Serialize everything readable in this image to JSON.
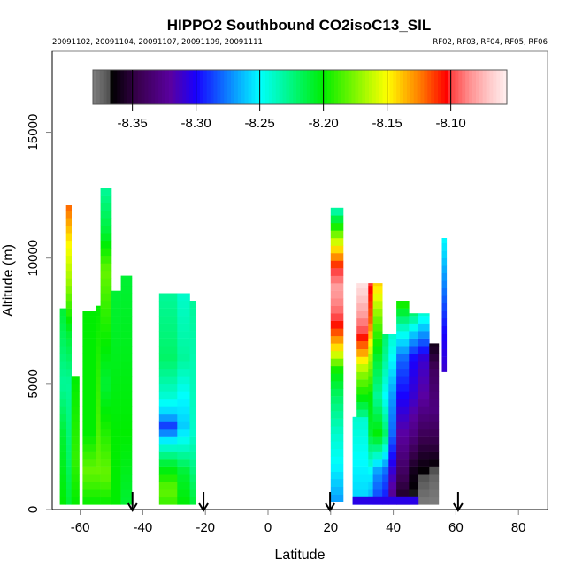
{
  "chart_data": {
    "type": "heatmap",
    "title": "HIPPO2 Southbound CO2isoC13_SIL",
    "subtitle_left": "20091102, 20091104, 20091107, 20091109, 20091111",
    "subtitle_right": "RF02, RF03, RF04, RF05, RF06",
    "xlabel": "Latitude",
    "ylabel": "Altitude (m)",
    "xlim": [
      -72,
      90
    ],
    "ylim": [
      0,
      18200
    ],
    "xticks": [
      -60,
      -40,
      -20,
      0,
      20,
      40,
      60,
      80
    ],
    "xtick_labels": [
      "-60",
      "-40",
      "-20",
      "0",
      "20",
      "40",
      "60",
      "80"
    ],
    "yticks": [
      0,
      5000,
      10000,
      15000
    ],
    "ytick_labels": [
      "0",
      "5000",
      "10000",
      "15000"
    ],
    "grid": false,
    "colorbar": {
      "placement": "top-inside",
      "range": [
        -8.381,
        -8.056
      ],
      "ticks": [
        -8.35,
        -8.3,
        -8.25,
        -8.2,
        -8.15,
        -8.1
      ],
      "tick_labels": [
        "-8.35",
        "-8.30",
        "-8.25",
        "-8.20",
        "-8.15",
        "-8.10"
      ],
      "stops": [
        {
          "v": -8.381,
          "c": "#808080"
        },
        {
          "v": -8.368,
          "c": "#505050"
        },
        {
          "v": -8.366,
          "c": "#000000"
        },
        {
          "v": -8.345,
          "c": "#3a0050"
        },
        {
          "v": -8.32,
          "c": "#5a00a0"
        },
        {
          "v": -8.3,
          "c": "#1800ff"
        },
        {
          "v": -8.25,
          "c": "#00ffff"
        },
        {
          "v": -8.2,
          "c": "#00ee00"
        },
        {
          "v": -8.15,
          "c": "#ffff00"
        },
        {
          "v": -8.125,
          "c": "#ff8000"
        },
        {
          "v": -8.103,
          "c": "#ff0000"
        },
        {
          "v": -8.1,
          "c": "#ff4040"
        },
        {
          "v": -8.085,
          "c": "#ff9090"
        },
        {
          "v": -8.07,
          "c": "#ffc8c8"
        },
        {
          "v": -8.056,
          "c": "#fff0f0"
        }
      ]
    },
    "arrows_latitude": [
      -43.3,
      -20.6,
      19.8,
      60.7
    ],
    "columns": [
      {
        "lat": [
          -64.5,
          -62.8
        ],
        "alt": [
          200,
          12100
        ],
        "profile": [
          [
            200,
            -8.21
          ],
          [
            2000,
            -8.22
          ],
          [
            5000,
            -8.23
          ],
          [
            7000,
            -8.21
          ],
          [
            9000,
            -8.17
          ],
          [
            10500,
            -8.15
          ],
          [
            12100,
            -8.12
          ]
        ]
      },
      {
        "lat": [
          -66.5,
          -64.5
        ],
        "alt": [
          200,
          8000
        ],
        "profile": [
          [
            200,
            -8.2
          ],
          [
            3000,
            -8.21
          ],
          [
            5000,
            -8.23
          ],
          [
            8000,
            -8.21
          ]
        ]
      },
      {
        "lat": [
          -62.8,
          -60.3
        ],
        "alt": [
          200,
          5300
        ],
        "profile": [
          [
            200,
            -8.2
          ],
          [
            2000,
            -8.19
          ],
          [
            5300,
            -8.2
          ]
        ]
      },
      {
        "lat": [
          -59.2,
          -55.0
        ],
        "alt": [
          200,
          7900
        ],
        "profile": [
          [
            200,
            -8.2
          ],
          [
            1500,
            -8.18
          ],
          [
            3000,
            -8.2
          ],
          [
            7900,
            -8.2
          ]
        ]
      },
      {
        "lat": [
          -55.0,
          -53.5
        ],
        "alt": [
          200,
          8100
        ],
        "profile": [
          [
            200,
            -8.2
          ],
          [
            1500,
            -8.18
          ],
          [
            8100,
            -8.2
          ]
        ]
      },
      {
        "lat": [
          -53.5,
          -50.0
        ],
        "alt": [
          200,
          12800
        ],
        "profile": [
          [
            200,
            -8.2
          ],
          [
            1400,
            -8.18
          ],
          [
            5000,
            -8.21
          ],
          [
            8000,
            -8.19
          ],
          [
            9500,
            -8.18
          ],
          [
            11000,
            -8.21
          ],
          [
            12800,
            -8.23
          ]
        ]
      },
      {
        "lat": [
          -50.0,
          -47.0
        ],
        "alt": [
          200,
          8700
        ],
        "profile": [
          [
            200,
            -8.2
          ],
          [
            3000,
            -8.2
          ],
          [
            8700,
            -8.21
          ]
        ]
      },
      {
        "lat": [
          -47.0,
          -43.5
        ],
        "alt": [
          200,
          9300
        ],
        "profile": [
          [
            200,
            -8.21
          ],
          [
            3000,
            -8.2
          ],
          [
            9300,
            -8.21
          ]
        ]
      },
      {
        "lat": [
          -34.8,
          -29.0
        ],
        "alt": [
          200,
          8600
        ],
        "profile": [
          [
            200,
            -8.19
          ],
          [
            800,
            -8.18
          ],
          [
            1800,
            -8.21
          ],
          [
            2700,
            -8.25
          ],
          [
            3300,
            -8.29
          ],
          [
            3800,
            -8.26
          ],
          [
            4600,
            -8.24
          ],
          [
            6000,
            -8.22
          ],
          [
            8600,
            -8.23
          ]
        ]
      },
      {
        "lat": [
          -29.0,
          -25.0
        ],
        "alt": [
          200,
          8600
        ],
        "profile": [
          [
            200,
            -8.2
          ],
          [
            1500,
            -8.21
          ],
          [
            2500,
            -8.24
          ],
          [
            3300,
            -8.26
          ],
          [
            4500,
            -8.25
          ],
          [
            6000,
            -8.23
          ],
          [
            8600,
            -8.24
          ]
        ]
      },
      {
        "lat": [
          -25.0,
          -23.0
        ],
        "alt": [
          200,
          8300
        ],
        "profile": [
          [
            200,
            -8.21
          ],
          [
            3000,
            -8.24
          ],
          [
            8300,
            -8.23
          ]
        ]
      },
      {
        "lat": [
          20.0,
          24.0
        ],
        "alt": [
          300,
          12000
        ],
        "profile": [
          [
            300,
            -8.27
          ],
          [
            1800,
            -8.25
          ],
          [
            3000,
            -8.24
          ],
          [
            4500,
            -8.22
          ],
          [
            5500,
            -8.2
          ],
          [
            6300,
            -8.15
          ],
          [
            7200,
            -8.11
          ],
          [
            8000,
            -8.09
          ],
          [
            8800,
            -8.08
          ],
          [
            9500,
            -8.1
          ],
          [
            10500,
            -8.15
          ],
          [
            11500,
            -8.21
          ],
          [
            12000,
            -8.24
          ]
        ]
      },
      {
        "lat": [
          27.0,
          32.0
        ],
        "alt": [
          200,
          3700
        ],
        "profile": [
          [
            200,
            -8.26
          ],
          [
            3700,
            -8.24
          ]
        ]
      },
      {
        "lat": [
          28.3,
          32.0
        ],
        "alt": [
          3700,
          9000
        ],
        "profile": [
          [
            3700,
            -8.23
          ],
          [
            4500,
            -8.2
          ],
          [
            5500,
            -8.17
          ],
          [
            6300,
            -8.13
          ],
          [
            7000,
            -8.1
          ],
          [
            7800,
            -8.08
          ],
          [
            9000,
            -8.06
          ]
        ]
      },
      {
        "lat": [
          32.0,
          33.5
        ],
        "alt": [
          200,
          9000
        ],
        "profile": [
          [
            200,
            -8.27
          ],
          [
            1500,
            -8.25
          ],
          [
            3000,
            -8.21
          ],
          [
            4500,
            -8.2
          ],
          [
            6000,
            -8.17
          ],
          [
            7500,
            -8.12
          ],
          [
            9000,
            -8.1
          ]
        ]
      },
      {
        "lat": [
          33.5,
          36.5
        ],
        "alt": [
          200,
          9000
        ],
        "profile": [
          [
            200,
            -8.29
          ],
          [
            1500,
            -8.27
          ],
          [
            3000,
            -8.2
          ],
          [
            4500,
            -8.23
          ],
          [
            6000,
            -8.21
          ],
          [
            7500,
            -8.18
          ],
          [
            9000,
            -8.14
          ]
        ]
      },
      {
        "lat": [
          36.5,
          38.5
        ],
        "alt": [
          200,
          7000
        ],
        "profile": [
          [
            200,
            -8.3
          ],
          [
            1500,
            -8.28
          ],
          [
            3000,
            -8.22
          ],
          [
            4500,
            -8.25
          ],
          [
            6000,
            -8.23
          ],
          [
            7000,
            -8.22
          ]
        ]
      },
      {
        "lat": [
          38.5,
          41.0
        ],
        "alt": [
          200,
          7000
        ],
        "profile": [
          [
            200,
            -8.33
          ],
          [
            1500,
            -8.31
          ],
          [
            3000,
            -8.28
          ],
          [
            4500,
            -8.27
          ],
          [
            6000,
            -8.25
          ],
          [
            7000,
            -8.24
          ]
        ]
      },
      {
        "lat": [
          41.0,
          45.0
        ],
        "alt": [
          200,
          8300
        ],
        "profile": [
          [
            200,
            -8.36
          ],
          [
            1500,
            -8.34
          ],
          [
            3000,
            -8.32
          ],
          [
            4500,
            -8.3
          ],
          [
            6000,
            -8.28
          ],
          [
            7200,
            -8.24
          ],
          [
            8300,
            -8.19
          ]
        ]
      },
      {
        "lat": [
          45.0,
          48.0
        ],
        "alt": [
          200,
          7800
        ],
        "profile": [
          [
            200,
            -8.37
          ],
          [
            1500,
            -8.36
          ],
          [
            3000,
            -8.33
          ],
          [
            4500,
            -8.31
          ],
          [
            6000,
            -8.3
          ],
          [
            7000,
            -8.26
          ],
          [
            7800,
            -8.22
          ]
        ]
      },
      {
        "lat": [
          48.0,
          51.5
        ],
        "alt": [
          200,
          7800
        ],
        "profile": [
          [
            200,
            -8.38
          ],
          [
            1200,
            -8.37
          ],
          [
            2500,
            -8.35
          ],
          [
            4500,
            -8.32
          ],
          [
            6000,
            -8.31
          ],
          [
            7000,
            -8.27
          ],
          [
            7800,
            -8.24
          ]
        ]
      },
      {
        "lat": [
          51.5,
          54.5
        ],
        "alt": [
          200,
          6600
        ],
        "profile": [
          [
            200,
            -8.38
          ],
          [
            1200,
            -8.375
          ],
          [
            2500,
            -8.35
          ],
          [
            4000,
            -8.33
          ],
          [
            5500,
            -8.34
          ],
          [
            6600,
            -8.36
          ]
        ]
      },
      {
        "lat": [
          27.0,
          48.0
        ],
        "alt": [
          200,
          500
        ],
        "profile": [
          [
            200,
            -8.3
          ],
          [
            500,
            -8.31
          ]
        ]
      },
      {
        "lat": [
          55.5,
          57.0
        ],
        "alt": [
          5500,
          10800
        ],
        "profile": [
          [
            5500,
            -8.31
          ],
          [
            7000,
            -8.3
          ],
          [
            8500,
            -8.28
          ],
          [
            10000,
            -8.26
          ],
          [
            10800,
            -8.25
          ]
        ]
      }
    ]
  }
}
